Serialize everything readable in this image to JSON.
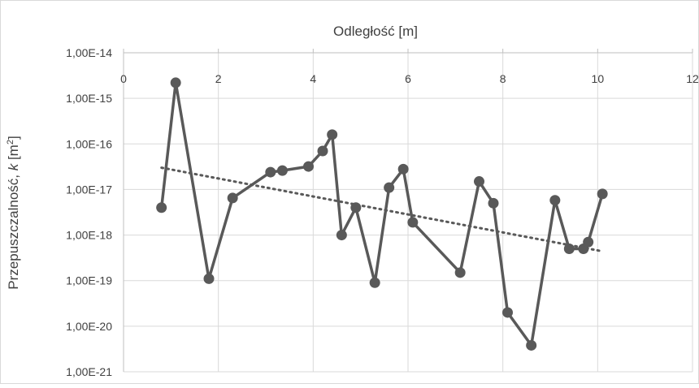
{
  "chart_data": {
    "type": "scatter",
    "xlabel": "Odległość [m]",
    "ylabel": {
      "prefix": "Przepuszczalność, ",
      "italic": "k",
      "suffix": " [m",
      "sup": "2",
      "close": "]"
    },
    "xlim": [
      0,
      12
    ],
    "x_ticks": [
      0,
      2,
      4,
      6,
      8,
      10,
      12
    ],
    "x_axis_position": "top",
    "y_scale": "log",
    "ylim": [
      1e-21,
      1e-14
    ],
    "y_tick_values": [
      1e-14,
      1e-15,
      1e-16,
      1e-17,
      1e-18,
      1e-19,
      1e-20,
      1e-21
    ],
    "y_tick_labels": [
      "1,00E-14",
      "1,00E-15",
      "1,00E-16",
      "1,00E-17",
      "1,00E-18",
      "1,00E-19",
      "1,00E-20",
      "1,00E-21"
    ],
    "grid": true,
    "legend": "none",
    "series": [
      {
        "style": "line-with-markers",
        "x": [
          0.8,
          1.1,
          1.8,
          2.3,
          3.1,
          3.35,
          3.9,
          4.2,
          4.4,
          4.6,
          4.9,
          5.3,
          5.6,
          5.9,
          6.1,
          7.1,
          7.5,
          7.8,
          8.1,
          8.6,
          9.1,
          9.4,
          9.7,
          9.8,
          10.1
        ],
        "y": [
          4e-18,
          2.2e-15,
          1.1e-19,
          6.5e-18,
          2.4e-17,
          2.6e-17,
          3.2e-17,
          7e-17,
          1.6e-16,
          1e-18,
          4e-18,
          9e-20,
          1.1e-17,
          2.8e-17,
          1.9e-18,
          1.5e-19,
          1.5e-17,
          5e-18,
          2e-20,
          3.8e-21,
          5.8e-18,
          5e-19,
          5e-19,
          7e-19,
          8e-18
        ]
      },
      {
        "style": "dotted-trendline",
        "x": [
          0.8,
          10.1
        ],
        "y": [
          3e-17,
          4.4e-19
        ]
      }
    ],
    "colors": {
      "series_line": "#595959",
      "series_marker": "#595959",
      "trendline": "#595959",
      "grid": "#d9d9d9",
      "axis": "#bfbfbf",
      "text": "#404040",
      "border": "#d9d9d9"
    }
  }
}
